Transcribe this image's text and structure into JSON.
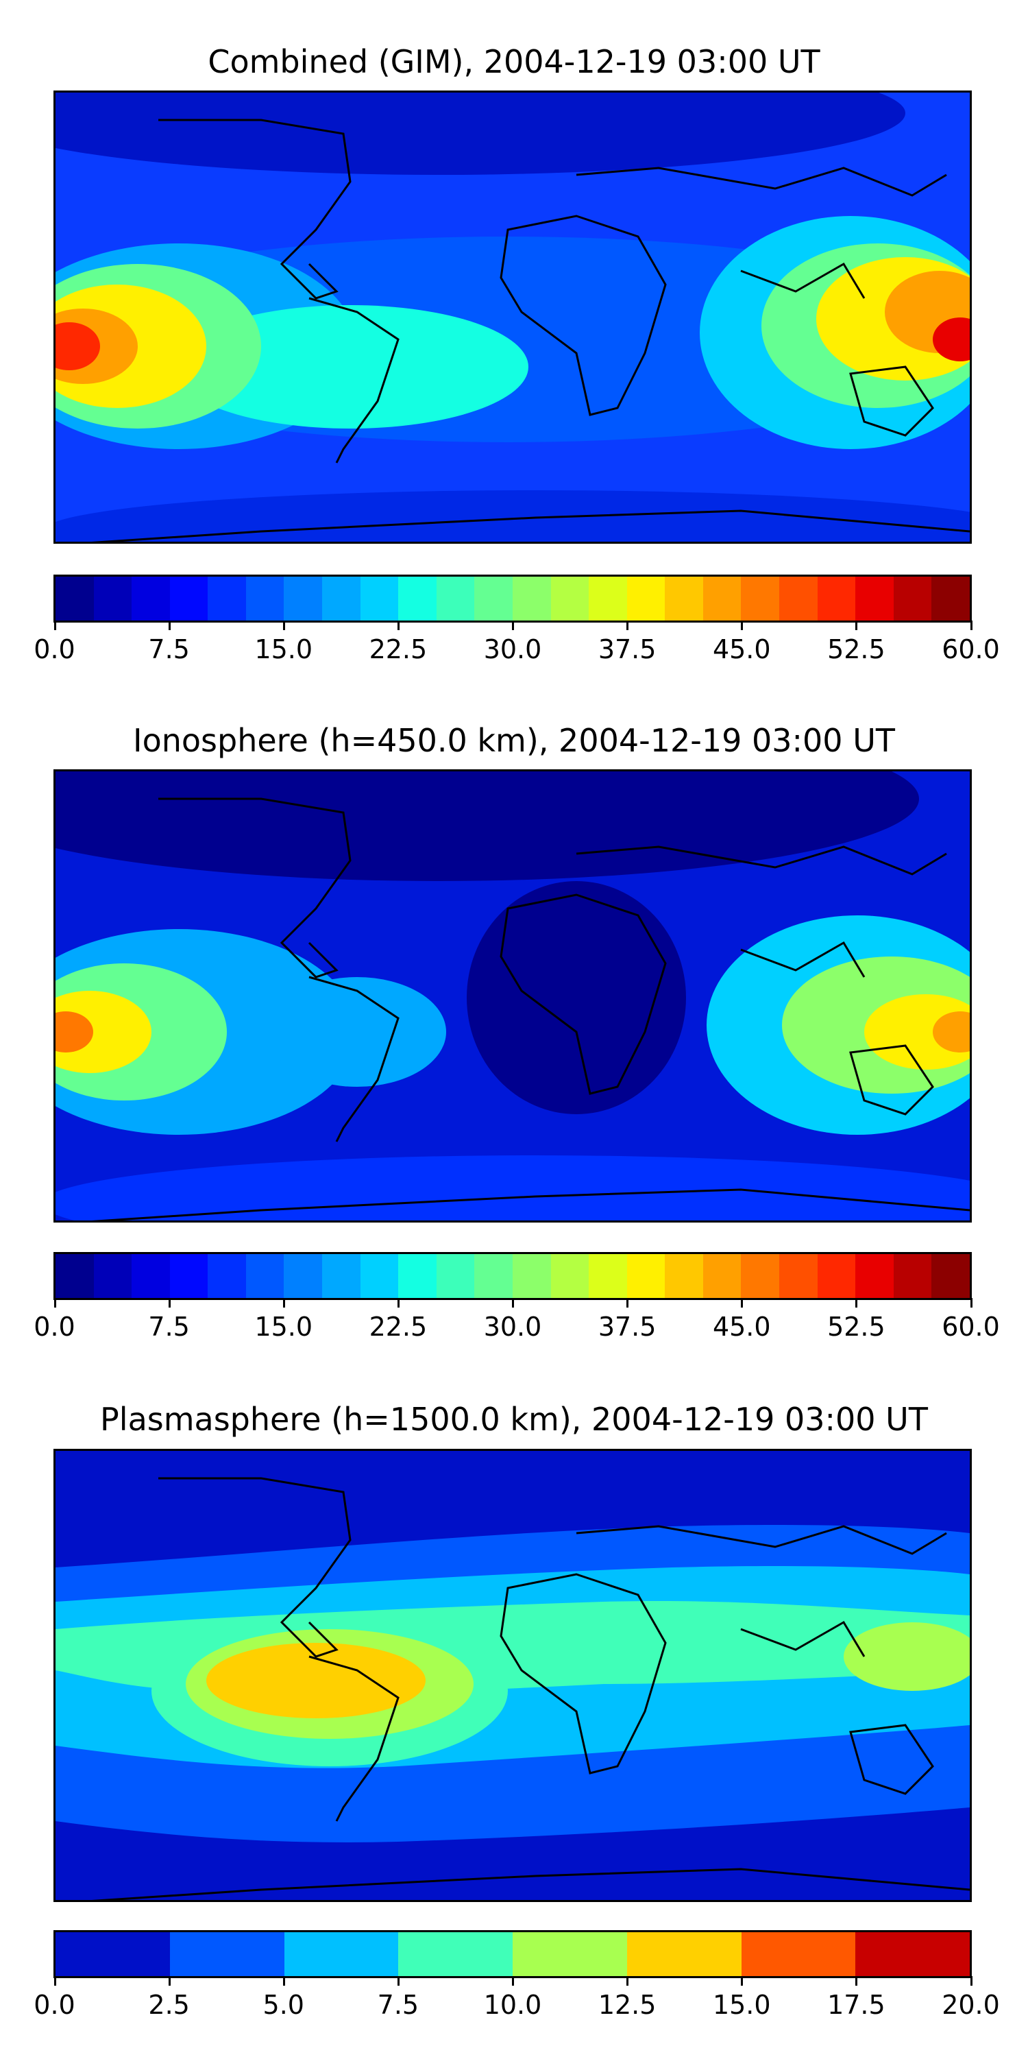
{
  "panels": [
    {
      "title": "Combined (GIM), 2004-12-19 03:00 UT",
      "colorbar": {
        "ticks": [
          "0.0",
          "7.5",
          "15.0",
          "22.5",
          "30.0",
          "37.5",
          "45.0",
          "52.5",
          "60.0"
        ],
        "colors": [
          "#00008f",
          "#0000b8",
          "#0000e0",
          "#0008ff",
          "#0030ff",
          "#0058ff",
          "#0080ff",
          "#00a8ff",
          "#00d0ff",
          "#14ffe2",
          "#3cffba",
          "#64ff92",
          "#8cff6a",
          "#b4ff42",
          "#dcff1a",
          "#fff000",
          "#ffc800",
          "#ffa000",
          "#ff7800",
          "#ff5000",
          "#ff2800",
          "#e80000",
          "#b80000",
          "#8c0000"
        ]
      },
      "features": [
        {
          "name": "background",
          "color": "#0a3cff"
        },
        {
          "name": "polar-north",
          "color": "#0014c8"
        },
        {
          "name": "polar-south",
          "color": "#0028e6"
        },
        {
          "name": "equatorial-band",
          "color": "#0080ff"
        },
        {
          "name": "pacific-peak-west",
          "color": "#ff2800"
        },
        {
          "name": "pacific-peak-east",
          "color": "#e80000"
        },
        {
          "name": "south-america-band",
          "color": "#14ffe2"
        }
      ]
    },
    {
      "title": "Ionosphere  (h=450.0 km), 2004-12-19 03:00 UT",
      "colorbar": {
        "ticks": [
          "0.0",
          "7.5",
          "15.0",
          "22.5",
          "30.0",
          "37.5",
          "45.0",
          "52.5",
          "60.0"
        ],
        "colors": [
          "#00008f",
          "#0000b8",
          "#0000e0",
          "#0008ff",
          "#0030ff",
          "#0058ff",
          "#0080ff",
          "#00a8ff",
          "#00d0ff",
          "#14ffe2",
          "#3cffba",
          "#64ff92",
          "#8cff6a",
          "#b4ff42",
          "#dcff1a",
          "#fff000",
          "#ffc800",
          "#ffa000",
          "#ff7800",
          "#ff5000",
          "#ff2800",
          "#e80000",
          "#b80000",
          "#8c0000"
        ]
      },
      "features": [
        {
          "name": "background",
          "color": "#0018d8"
        },
        {
          "name": "polar-north",
          "color": "#00008f"
        },
        {
          "name": "polar-south",
          "color": "#0030ff"
        },
        {
          "name": "equatorial-band",
          "color": "#0058ff"
        },
        {
          "name": "pacific-peak-west",
          "color": "#ff7800"
        },
        {
          "name": "pacific-peak-east",
          "color": "#ffa000"
        },
        {
          "name": "south-america-band",
          "color": "#00a8ff"
        }
      ]
    },
    {
      "title": "Plasmasphere (h=1500.0 km), 2004-12-19 03:00 UT",
      "colorbar": {
        "ticks": [
          "0.0",
          "2.5",
          "5.0",
          "7.5",
          "10.0",
          "12.5",
          "15.0",
          "17.5",
          "20.0"
        ],
        "colors": [
          "#0010c8",
          "#0058ff",
          "#00c0ff",
          "#40ffb8",
          "#a8ff50",
          "#ffd000",
          "#ff5800",
          "#c80000"
        ]
      },
      "features": [
        {
          "name": "background",
          "color": "#0010c8"
        },
        {
          "name": "mid-band",
          "color": "#0058ff"
        },
        {
          "name": "equatorial-band",
          "color": "#00c0ff"
        },
        {
          "name": "inner-band",
          "color": "#40ffb8"
        },
        {
          "name": "america-blob",
          "color": "#a8ff50"
        },
        {
          "name": "america-core",
          "color": "#ffd000"
        },
        {
          "name": "asia-blob",
          "color": "#40ffb8"
        }
      ]
    }
  ]
}
